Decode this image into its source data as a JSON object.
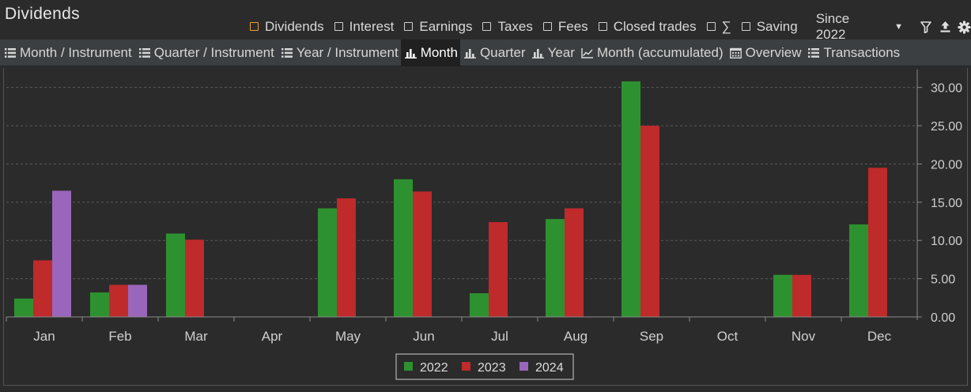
{
  "header": {
    "title": "Dividends",
    "filters": [
      {
        "label": "Dividends",
        "color": "#f0a030"
      },
      {
        "label": "Interest"
      },
      {
        "label": "Earnings"
      },
      {
        "label": "Taxes"
      },
      {
        "label": "Fees"
      },
      {
        "label": "Closed trades"
      },
      {
        "label": "∑"
      },
      {
        "label": "Saving"
      }
    ],
    "period": "Since 2022",
    "icons": [
      "filter-icon",
      "export-icon",
      "settings-icon"
    ]
  },
  "tabs": [
    {
      "label": "Month / Instrument",
      "icon": "list-icon"
    },
    {
      "label": "Quarter / Instrument",
      "icon": "list-icon"
    },
    {
      "label": "Year / Instrument",
      "icon": "list-icon"
    },
    {
      "label": "Month",
      "icon": "bar-chart-icon",
      "active": true
    },
    {
      "label": "Quarter",
      "icon": "bar-chart-icon"
    },
    {
      "label": "Year",
      "icon": "bar-chart-icon"
    },
    {
      "label": "Month (accumulated)",
      "icon": "line-chart-icon"
    },
    {
      "label": "Overview",
      "icon": "calendar-icon"
    },
    {
      "label": "Transactions",
      "icon": "list-icon"
    }
  ],
  "chart_data": {
    "type": "bar",
    "categories": [
      "Jan",
      "Feb",
      "Mar",
      "Apr",
      "May",
      "Jun",
      "Jul",
      "Aug",
      "Sep",
      "Oct",
      "Nov",
      "Dec"
    ],
    "series": [
      {
        "name": "2022",
        "color": "#2e9130",
        "values": [
          2.4,
          3.2,
          10.9,
          0,
          14.2,
          18.0,
          3.1,
          12.8,
          30.8,
          0,
          5.5,
          12.1
        ]
      },
      {
        "name": "2023",
        "color": "#bf2a2a",
        "values": [
          7.4,
          4.2,
          10.1,
          0,
          15.5,
          16.4,
          12.4,
          14.2,
          25.0,
          0,
          5.5,
          19.5
        ]
      },
      {
        "name": "2024",
        "color": "#9966bb",
        "values": [
          16.5,
          4.2,
          0,
          0,
          0,
          0,
          0,
          0,
          0,
          0,
          0,
          0
        ]
      }
    ],
    "yticks": [
      "0.00",
      "5.00",
      "10.00",
      "15.00",
      "20.00",
      "25.00",
      "30.00"
    ],
    "ylim": [
      0,
      31
    ],
    "grid": true,
    "legend": "bottom-center",
    "title": "",
    "xlabel": "",
    "ylabel": ""
  }
}
